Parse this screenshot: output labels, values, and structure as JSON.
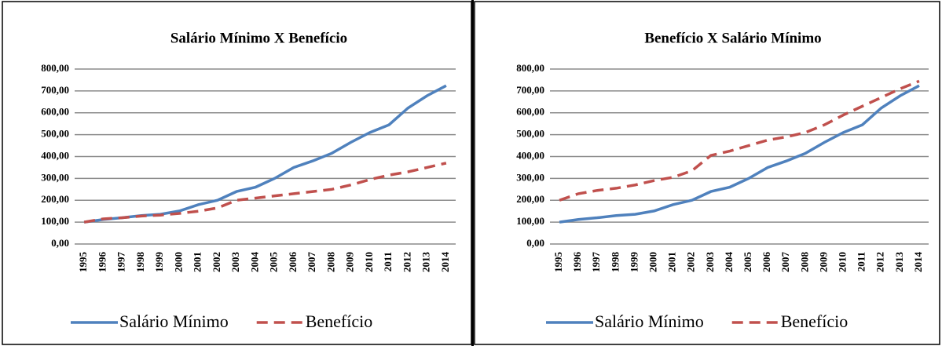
{
  "chart_data": [
    {
      "type": "line",
      "title": "Salário Mínimo X Benefício",
      "categories": [
        "1995",
        "1996",
        "1997",
        "1998",
        "1999",
        "2000",
        "2001",
        "2002",
        "2003",
        "2004",
        "2005",
        "2006",
        "2007",
        "2008",
        "2009",
        "2010",
        "2011",
        "2012",
        "2013",
        "2014"
      ],
      "series": [
        {
          "name": "Salário Mínimo",
          "color": "#4f81bd",
          "values": [
            100,
            112,
            120,
            130,
            136,
            151,
            180,
            200,
            240,
            260,
            300,
            350,
            380,
            415,
            465,
            510,
            545,
            622,
            678,
            724
          ]
        },
        {
          "name": "Benefício",
          "color": "#c0504d",
          "values": [
            100,
            115,
            120,
            128,
            132,
            140,
            150,
            165,
            200,
            210,
            220,
            230,
            240,
            250,
            270,
            295,
            315,
            330,
            350,
            370
          ]
        }
      ],
      "ylim": [
        0,
        800
      ],
      "yticks": [
        {
          "value": 0,
          "label": "0,00"
        },
        {
          "value": 100,
          "label": "100,00"
        },
        {
          "value": 200,
          "label": "200,00"
        },
        {
          "value": 300,
          "label": "300,00"
        },
        {
          "value": 400,
          "label": "400,00"
        },
        {
          "value": 500,
          "label": "500,00"
        },
        {
          "value": 600,
          "label": "600,00"
        },
        {
          "value": 700,
          "label": "700,00"
        },
        {
          "value": 800,
          "label": "800,00"
        }
      ],
      "grid": true,
      "legend": "bottom"
    },
    {
      "type": "line",
      "title": "Benefício X Salário Mínimo",
      "categories": [
        "1995",
        "1996",
        "1997",
        "1998",
        "1999",
        "2000",
        "2001",
        "2002",
        "2003",
        "2004",
        "2005",
        "2006",
        "2007",
        "2008",
        "2009",
        "2010",
        "2011",
        "2012",
        "2013",
        "2014"
      ],
      "series": [
        {
          "name": "Salário Mínimo",
          "color": "#4f81bd",
          "values": [
            100,
            112,
            120,
            130,
            136,
            151,
            180,
            200,
            240,
            260,
            300,
            350,
            380,
            415,
            465,
            510,
            545,
            622,
            678,
            724
          ]
        },
        {
          "name": "Benefício",
          "color": "#c0504d",
          "values": [
            200,
            230,
            245,
            255,
            270,
            290,
            305,
            335,
            405,
            425,
            450,
            475,
            490,
            510,
            545,
            590,
            630,
            670,
            710,
            745
          ]
        }
      ],
      "ylim": [
        0,
        800
      ],
      "yticks": [
        {
          "value": 0,
          "label": "0,00"
        },
        {
          "value": 100,
          "label": "100,00"
        },
        {
          "value": 200,
          "label": "200,00"
        },
        {
          "value": 300,
          "label": "300,00"
        },
        {
          "value": 400,
          "label": "400,00"
        },
        {
          "value": 500,
          "label": "500,00"
        },
        {
          "value": 600,
          "label": "600,00"
        },
        {
          "value": 700,
          "label": "700,00"
        },
        {
          "value": 800,
          "label": "800,00"
        }
      ],
      "grid": true,
      "legend": "bottom"
    }
  ]
}
